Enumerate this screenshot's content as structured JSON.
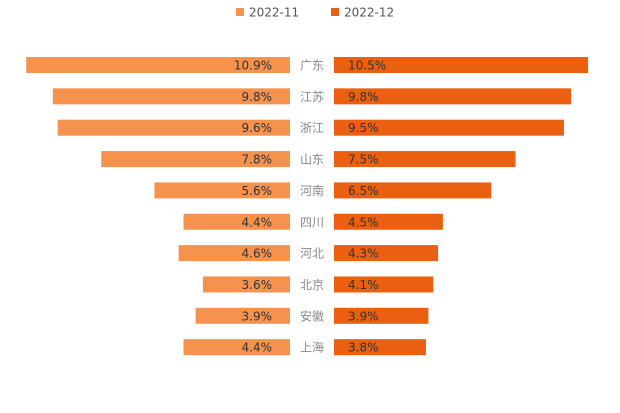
{
  "chart_data": {
    "type": "bar",
    "orientation": "horizontal-butterfly",
    "title": "",
    "categories": [
      "广东",
      "江苏",
      "浙江",
      "山东",
      "河南",
      "四川",
      "河北",
      "北京",
      "安徽",
      "上海"
    ],
    "series": [
      {
        "name": "2022-11",
        "color": "#F5924D",
        "values": [
          10.9,
          9.8,
          9.6,
          7.8,
          5.6,
          4.4,
          4.6,
          3.6,
          3.9,
          4.4
        ],
        "labels": [
          "10.9%",
          "9.8%",
          "9.6%",
          "7.8%",
          "5.6%",
          "4.4%",
          "4.6%",
          "3.6%",
          "3.9%",
          "4.4%"
        ]
      },
      {
        "name": "2022-12",
        "color": "#EA6010",
        "values": [
          10.5,
          9.8,
          9.5,
          7.5,
          6.5,
          4.5,
          4.3,
          4.1,
          3.9,
          3.8
        ],
        "labels": [
          "10.5%",
          "9.8%",
          "9.5%",
          "7.5%",
          "6.5%",
          "4.5%",
          "4.3%",
          "4.1%",
          "3.9%",
          "3.8%"
        ]
      }
    ],
    "legend_position": "top-center",
    "unit": "%",
    "xlim": [
      0,
      11
    ]
  }
}
